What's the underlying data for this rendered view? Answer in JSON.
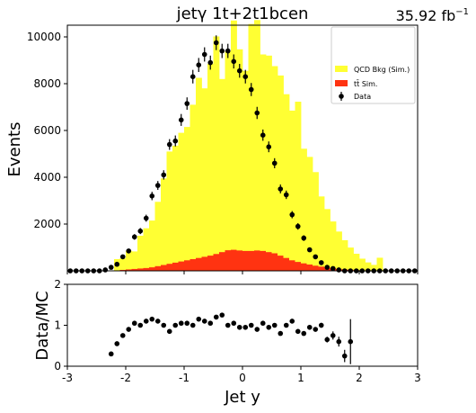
{
  "header": {
    "title": "jetγ  1t+2t1bcen",
    "lumi": "35.92 fb",
    "lumi_exp": "−1"
  },
  "chart_data": [
    {
      "type": "histogram",
      "panel": "main",
      "xlim": [
        -3,
        3
      ],
      "ylim": [
        0,
        10500
      ],
      "ylabel": "Events",
      "yticks": [
        2000,
        4000,
        6000,
        8000,
        10000
      ],
      "legend_position": "top-right",
      "grid": false,
      "bin_edges": [
        -3.0,
        -2.9,
        -2.8,
        -2.7,
        -2.6,
        -2.5,
        -2.4,
        -2.3,
        -2.2,
        -2.1,
        -2.0,
        -1.9,
        -1.8,
        -1.7,
        -1.6,
        -1.5,
        -1.4,
        -1.3,
        -1.2,
        -1.1,
        -1.0,
        -0.9,
        -0.8,
        -0.7,
        -0.6,
        -0.5,
        -0.4,
        -0.3,
        -0.2,
        -0.1,
        0.0,
        0.1,
        0.2,
        0.3,
        0.4,
        0.5,
        0.6,
        0.7,
        0.8,
        0.9,
        1.0,
        1.1,
        1.2,
        1.3,
        1.4,
        1.5,
        1.6,
        1.7,
        1.8,
        1.9,
        2.0,
        2.1,
        2.2,
        2.3,
        2.4,
        2.5,
        2.6,
        2.7,
        2.8,
        2.9,
        3.0
      ],
      "series": [
        {
          "name": "QCD Bkg (Sim.)",
          "color": "#ffff33",
          "values": [
            0,
            0,
            0,
            0,
            0,
            0,
            0,
            0,
            480,
            500,
            800,
            750,
            1400,
            1700,
            2000,
            2750,
            3700,
            4800,
            5000,
            5500,
            5700,
            6600,
            7700,
            7200,
            8200,
            9300,
            7400,
            8500,
            9800,
            8600,
            7700,
            9700,
            9850,
            8400,
            8400,
            8000,
            7700,
            7000,
            6400,
            6850,
            4900,
            4600,
            4000,
            3000,
            2500,
            2000,
            1600,
            1250,
            950,
            700,
            500,
            350,
            250,
            550,
            0,
            0,
            0,
            0,
            0,
            0
          ]
        },
        {
          "name": "tt̄ Sim.",
          "color": "#ff3311",
          "values": [
            0,
            0,
            0,
            0,
            0,
            0,
            0,
            0,
            20,
            40,
            60,
            80,
            100,
            120,
            150,
            200,
            250,
            300,
            350,
            400,
            450,
            500,
            550,
            600,
            650,
            720,
            800,
            880,
            900,
            870,
            850,
            850,
            870,
            850,
            800,
            750,
            650,
            550,
            450,
            380,
            320,
            270,
            220,
            180,
            140,
            110,
            80,
            60,
            45,
            30,
            20,
            10,
            5,
            10,
            0,
            0,
            0,
            0,
            0,
            0
          ]
        }
      ],
      "data": {
        "name": "Data",
        "x": [
          -2.95,
          -2.85,
          -2.75,
          -2.65,
          -2.55,
          -2.45,
          -2.35,
          -2.25,
          -2.15,
          -2.05,
          -1.95,
          -1.85,
          -1.75,
          -1.65,
          -1.55,
          -1.45,
          -1.35,
          -1.25,
          -1.15,
          -1.05,
          -0.95,
          -0.85,
          -0.75,
          -0.65,
          -0.55,
          -0.45,
          -0.35,
          -0.25,
          -0.15,
          -0.05,
          0.05,
          0.15,
          0.25,
          0.35,
          0.45,
          0.55,
          0.65,
          0.75,
          0.85,
          0.95,
          1.05,
          1.15,
          1.25,
          1.35,
          1.45,
          1.55,
          1.65,
          1.75,
          1.85,
          1.95,
          2.05,
          2.15,
          2.25,
          2.35,
          2.45,
          2.55,
          2.65,
          2.75,
          2.85,
          2.95
        ],
        "y": [
          0,
          0,
          0,
          0,
          0,
          0,
          40,
          150,
          280,
          600,
          850,
          1450,
          1700,
          2250,
          3200,
          3650,
          4100,
          5400,
          5550,
          6450,
          7150,
          8300,
          8800,
          9250,
          8900,
          9750,
          9400,
          9400,
          8950,
          8550,
          8300,
          7750,
          6750,
          5800,
          5300,
          4600,
          3500,
          3250,
          2400,
          1900,
          1400,
          900,
          600,
          350,
          150,
          100,
          40,
          0,
          0,
          0,
          0,
          0,
          0,
          0,
          0,
          0,
          0,
          0,
          0,
          0
        ],
        "yerr": [
          0,
          0,
          0,
          0,
          0,
          0,
          20,
          40,
          55,
          80,
          95,
          120,
          130,
          150,
          180,
          190,
          200,
          230,
          235,
          255,
          265,
          290,
          300,
          305,
          300,
          315,
          305,
          305,
          300,
          295,
          290,
          280,
          260,
          240,
          230,
          215,
          190,
          180,
          155,
          140,
          120,
          95,
          80,
          60,
          40,
          30,
          20,
          0,
          0,
          0,
          0,
          0,
          0,
          0,
          0,
          0,
          0,
          0,
          0,
          0
        ]
      }
    },
    {
      "type": "scatter",
      "panel": "ratio",
      "xlim": [
        -3,
        3
      ],
      "ylim": [
        0,
        2
      ],
      "xlabel": "Jet y",
      "ylabel": "Data/MC",
      "xticks": [
        -3,
        -2,
        -1,
        0,
        1,
        2,
        3
      ],
      "yticks": [
        0,
        1,
        2
      ],
      "x": [
        -2.25,
        -2.15,
        -2.05,
        -1.95,
        -1.85,
        -1.75,
        -1.65,
        -1.55,
        -1.45,
        -1.35,
        -1.25,
        -1.15,
        -1.05,
        -0.95,
        -0.85,
        -0.75,
        -0.65,
        -0.55,
        -0.45,
        -0.35,
        -0.25,
        -0.15,
        -0.05,
        0.05,
        0.15,
        0.25,
        0.35,
        0.45,
        0.55,
        0.65,
        0.75,
        0.85,
        0.95,
        1.05,
        1.15,
        1.25,
        1.35,
        1.45,
        1.55,
        1.65,
        1.75,
        1.85,
        1.95,
        2.05,
        2.15,
        2.25,
        2.35
      ],
      "y": [
        0.3,
        0.55,
        0.75,
        0.9,
        1.05,
        1.0,
        1.1,
        1.15,
        1.1,
        1.0,
        0.85,
        1.0,
        1.05,
        1.05,
        1.0,
        1.15,
        1.1,
        1.05,
        1.2,
        1.25,
        1.0,
        1.05,
        0.95,
        0.95,
        1.0,
        0.9,
        1.05,
        0.95,
        1.0,
        0.8,
        1.0,
        1.1,
        0.85,
        0.8,
        0.95,
        0.9,
        1.0,
        0.65,
        0.75,
        0.6,
        0.25,
        0.6,
        null,
        null,
        null,
        null,
        null
      ],
      "yerr": [
        0.05,
        0.05,
        0.05,
        0.05,
        0.04,
        0.04,
        0.04,
        0.04,
        0.04,
        0.04,
        0.04,
        0.04,
        0.04,
        0.04,
        0.04,
        0.04,
        0.04,
        0.04,
        0.04,
        0.04,
        0.04,
        0.04,
        0.04,
        0.04,
        0.04,
        0.04,
        0.04,
        0.04,
        0.04,
        0.04,
        0.04,
        0.04,
        0.04,
        0.04,
        0.04,
        0.05,
        0.06,
        0.07,
        0.1,
        0.12,
        0.15,
        0.55,
        0,
        0,
        0,
        0,
        0
      ]
    }
  ]
}
